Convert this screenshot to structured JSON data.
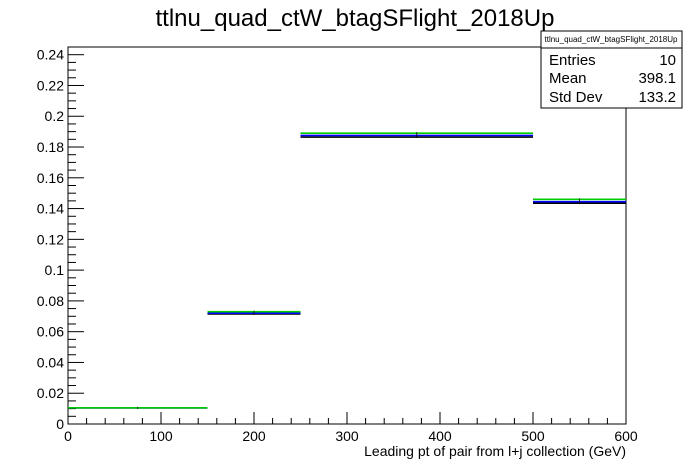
{
  "chart_data": {
    "type": "histogram",
    "title": "ttlnu_quad_ctW_btagSFlight_2018Up",
    "xlabel": "Leading pt of pair from l+j collection (GeV)",
    "ylabel": "",
    "xlim": [
      0,
      600
    ],
    "ylim": [
      0,
      0.245
    ],
    "x_ticks": [
      "0",
      "100",
      "200",
      "300",
      "400",
      "500",
      "600"
    ],
    "y_ticks": [
      "0",
      "0.02",
      "0.04",
      "0.06",
      "0.08",
      "0.1",
      "0.12",
      "0.14",
      "0.16",
      "0.18",
      "0.2",
      "0.22",
      "0.24"
    ],
    "bins": [
      {
        "x0": 0,
        "x1": 150
      },
      {
        "x0": 150,
        "x1": 250
      },
      {
        "x0": 250,
        "x1": 500
      },
      {
        "x0": 500,
        "x1": 600
      }
    ],
    "series": [
      {
        "color": "#000000",
        "values": [
          0.0105,
          0.0715,
          0.1865,
          0.1435
        ]
      },
      {
        "color": "#0000ff",
        "values": [
          0.0105,
          0.072,
          0.1875,
          0.1445
        ]
      },
      {
        "color": "#00cc00",
        "values": [
          0.0105,
          0.073,
          0.189,
          0.146
        ]
      }
    ],
    "grid": false,
    "legend": "none",
    "stats_box": {
      "title": "ttlnu_quad_ctW_btagSFlight_2018Up",
      "entries_label": "Entries",
      "entries": "10",
      "mean_label": "Mean",
      "mean": "398.1",
      "stddev_label": "Std Dev",
      "stddev": "133.2",
      "placement": "top-right"
    }
  }
}
